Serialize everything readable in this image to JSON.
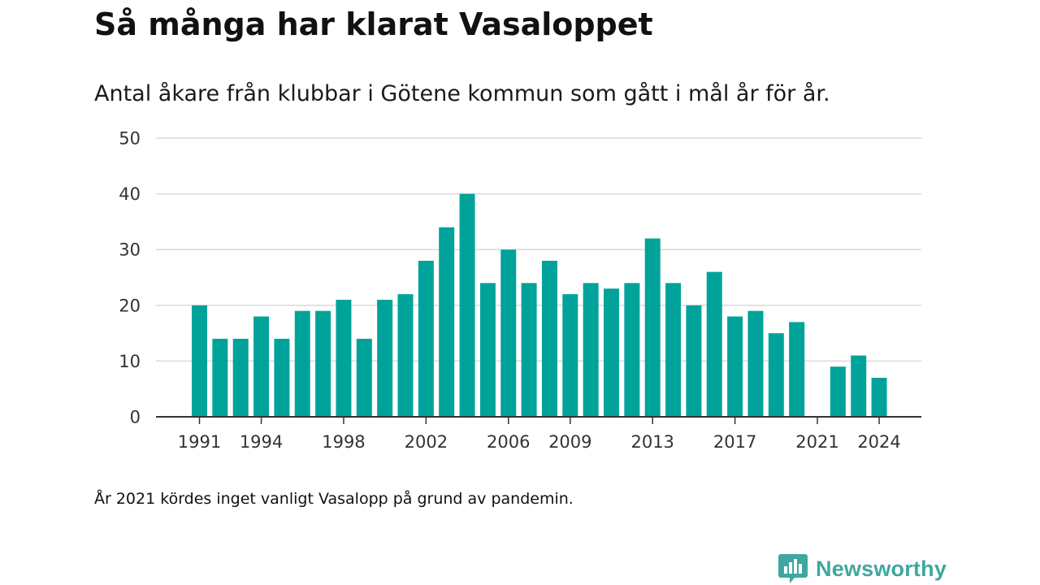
{
  "title": "Så många har klarat Vasaloppet",
  "subtitle": "Antal åkare från klubbar i Götene kommun som gått i mål år för år.",
  "footnote": "År 2021 kördes inget vanligt Vasalopp på grund av pandemin.",
  "brand": {
    "name": "Newsworthy",
    "icon": "bar-chart-speech-bubble-icon",
    "color": "#3ea8a0"
  },
  "colors": {
    "bar": "#00a39a",
    "grid": "#d9d9d9",
    "axis": "#333333"
  },
  "chart_data": {
    "type": "bar",
    "x": [
      1991,
      1992,
      1993,
      1994,
      1995,
      1996,
      1997,
      1998,
      1999,
      2000,
      2001,
      2002,
      2003,
      2004,
      2005,
      2006,
      2007,
      2008,
      2009,
      2010,
      2011,
      2012,
      2013,
      2014,
      2015,
      2016,
      2017,
      2018,
      2019,
      2020,
      2021,
      2022,
      2023,
      2024
    ],
    "values": [
      20,
      14,
      14,
      18,
      14,
      19,
      19,
      21,
      14,
      21,
      22,
      28,
      34,
      40,
      24,
      30,
      24,
      28,
      22,
      24,
      23,
      24,
      32,
      24,
      20,
      26,
      18,
      19,
      15,
      17,
      0,
      9,
      11,
      7
    ],
    "x_tick_labels": [
      "1991",
      "1994",
      "1998",
      "2002",
      "2006",
      "2009",
      "2013",
      "2017",
      "2021",
      "2024"
    ],
    "y_ticks": [
      0,
      10,
      20,
      30,
      40,
      50
    ],
    "ylim": [
      0,
      50
    ],
    "grid": true,
    "legend": "none"
  }
}
